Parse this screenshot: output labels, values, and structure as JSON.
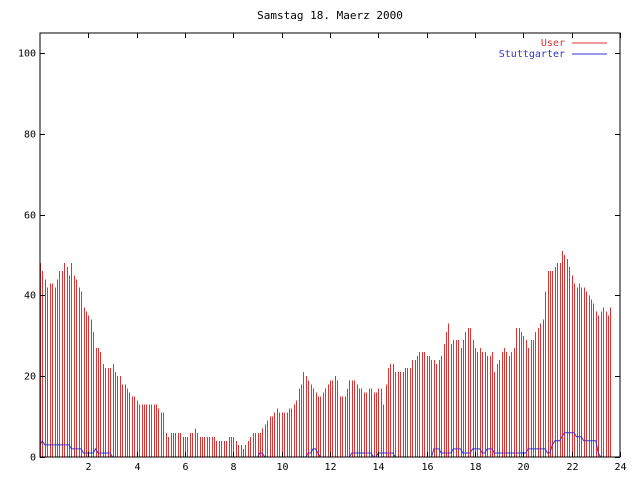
{
  "chart_data": {
    "type": "bar",
    "title": "Samstag 18. Maerz 2000",
    "xlabel": "",
    "ylabel": "",
    "xlim": [
      0,
      24
    ],
    "ylim": [
      0,
      105
    ],
    "x_ticks": [
      2,
      4,
      6,
      8,
      10,
      12,
      14,
      16,
      18,
      20,
      22,
      24
    ],
    "y_ticks": [
      0,
      20,
      40,
      60,
      80,
      100
    ],
    "grid": false,
    "legend_position": "top-right",
    "sample_interval_hours": 0.1,
    "series": [
      {
        "name": "User",
        "color": "#dd3333",
        "style": "impulses",
        "values": [
          48,
          46,
          44,
          42,
          43,
          43,
          42,
          44,
          46,
          46,
          48,
          47,
          45,
          48,
          45,
          44,
          42,
          41,
          37,
          36,
          35,
          34,
          31,
          27,
          27,
          26,
          23,
          22,
          22,
          22,
          23,
          21,
          20,
          20,
          18,
          18,
          17,
          16,
          15,
          15,
          14,
          13,
          13,
          13,
          13,
          13,
          13,
          13,
          13,
          12,
          11,
          11,
          6,
          5,
          6,
          6,
          6,
          6,
          6,
          5,
          5,
          5,
          6,
          6,
          7,
          6,
          5,
          5,
          5,
          5,
          5,
          5,
          5,
          4,
          4,
          4,
          4,
          4,
          5,
          5,
          5,
          4,
          3,
          3,
          2,
          3,
          4,
          5,
          6,
          6,
          6,
          6,
          7,
          8,
          9,
          10,
          10,
          11,
          12,
          11,
          11,
          11,
          11,
          12,
          12,
          13,
          14,
          17,
          18,
          21,
          20,
          19,
          18,
          17,
          16,
          15,
          15,
          16,
          17,
          18,
          19,
          19,
          20,
          19,
          15,
          15,
          15,
          17,
          19,
          19,
          19,
          18,
          17,
          17,
          16,
          16,
          17,
          17,
          16,
          16,
          17,
          17,
          13,
          18,
          22,
          23,
          23,
          21,
          21,
          21,
          21,
          22,
          22,
          22,
          24,
          24,
          25,
          26,
          26,
          26,
          25,
          25,
          24,
          24,
          23,
          24,
          25,
          28,
          31,
          33,
          28,
          29,
          29,
          29,
          27,
          29,
          31,
          32,
          32,
          29,
          27,
          26,
          27,
          26,
          26,
          25,
          25,
          26,
          21,
          23,
          24,
          26,
          27,
          26,
          25,
          26,
          27,
          32,
          32,
          31,
          30,
          29,
          27,
          29,
          29,
          31,
          32,
          33,
          34,
          41,
          46,
          46,
          46,
          47,
          48,
          48,
          51,
          50,
          49,
          47,
          45,
          43,
          42,
          43,
          42,
          42,
          41,
          40,
          39,
          38,
          36,
          35,
          36,
          37,
          36,
          35,
          37
        ],
        "y_fill_hint": "data values in chart units"
      },
      {
        "name": "Stuttgarter",
        "color": "#3333cc",
        "style": "lines",
        "values": [
          3,
          4,
          3,
          3,
          3,
          3,
          3,
          3,
          3,
          3,
          3,
          3,
          3,
          2,
          2,
          2,
          2,
          2,
          1,
          1,
          1,
          1,
          1,
          2,
          1,
          1,
          1,
          1,
          1,
          1,
          0,
          0,
          0,
          0,
          0,
          0,
          0,
          0,
          0,
          0,
          0,
          0,
          0,
          0,
          0,
          0,
          0,
          0,
          0,
          0,
          0,
          0,
          0,
          0,
          0,
          0,
          0,
          0,
          0,
          0,
          0,
          0,
          0,
          0,
          0,
          0,
          0,
          0,
          0,
          0,
          0,
          0,
          0,
          0,
          0,
          0,
          0,
          0,
          0,
          0,
          0,
          0,
          0,
          0,
          0,
          0,
          0,
          0,
          0,
          0,
          0,
          1,
          1,
          0,
          0,
          0,
          0,
          0,
          0,
          0,
          0,
          0,
          0,
          0,
          0,
          0,
          0,
          0,
          0,
          0,
          0,
          1,
          1,
          2,
          2,
          1,
          0,
          0,
          0,
          0,
          0,
          0,
          0,
          0,
          0,
          0,
          0,
          0,
          0,
          1,
          1,
          1,
          1,
          1,
          1,
          1,
          1,
          1,
          0,
          0,
          1,
          1,
          1,
          1,
          1,
          1,
          1,
          0,
          0,
          0,
          0,
          0,
          0,
          0,
          0,
          0,
          0,
          0,
          0,
          0,
          0,
          0,
          0,
          2,
          2,
          2,
          1,
          1,
          1,
          1,
          1,
          2,
          2,
          2,
          2,
          1,
          1,
          1,
          1,
          2,
          2,
          2,
          2,
          1,
          1,
          2,
          2,
          2,
          1,
          1,
          1,
          1,
          1,
          1,
          1,
          1,
          1,
          1,
          1,
          1,
          1,
          1,
          2,
          2,
          2,
          2,
          2,
          2,
          2,
          2,
          1,
          1,
          3,
          4,
          4,
          4,
          5,
          6,
          6,
          6,
          6,
          6,
          5,
          5,
          5,
          4,
          4,
          4,
          4,
          4,
          4,
          1,
          0
        ]
      }
    ]
  }
}
